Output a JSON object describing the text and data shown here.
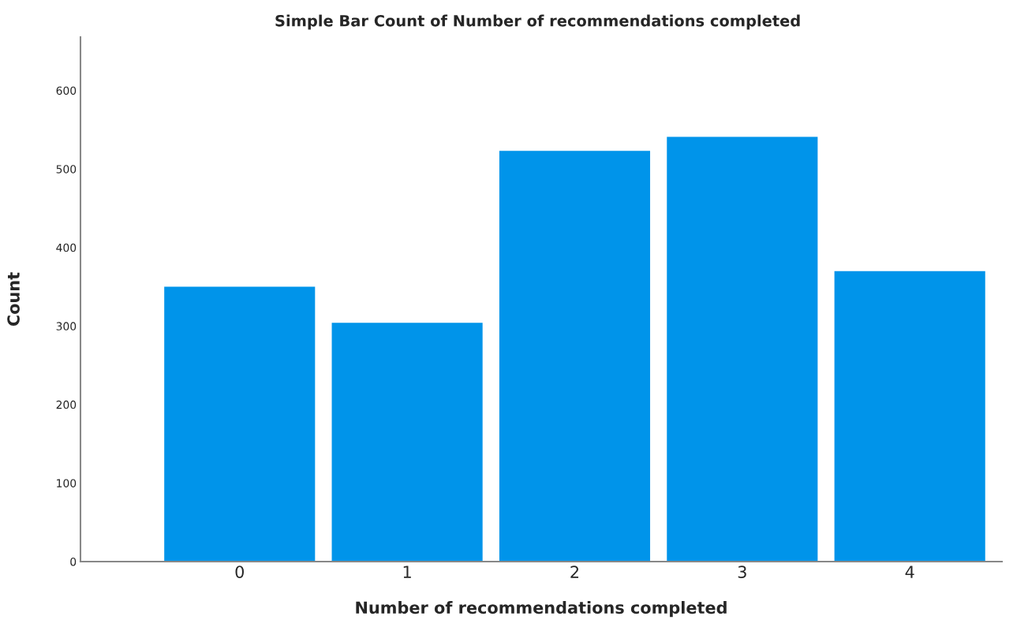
{
  "chart_data": {
    "type": "bar",
    "title": "Simple Bar Count of Number of recommendations completed",
    "xlabel": "Number of recommendations completed",
    "ylabel": "Count",
    "categories": [
      "0",
      "1",
      "2",
      "3",
      "4"
    ],
    "values": [
      350,
      304,
      523,
      541,
      370
    ],
    "color": "#0094ea",
    "ylim": [
      0,
      668
    ],
    "yticks": [
      0,
      100,
      200,
      300,
      400,
      500,
      600
    ],
    "grid": false
  }
}
